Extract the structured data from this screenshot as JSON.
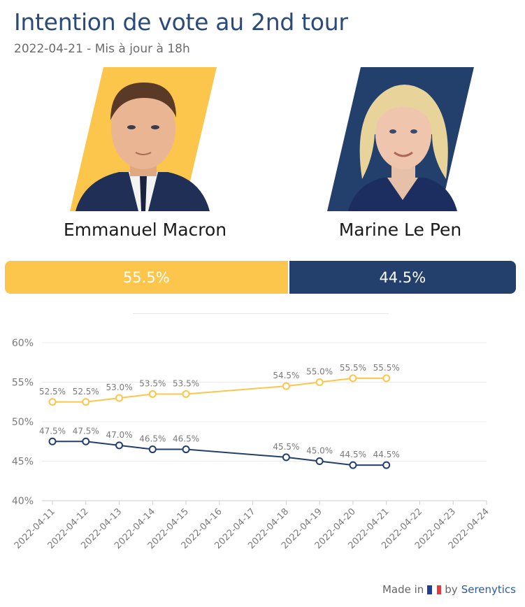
{
  "header": {
    "title": "Intention de vote au 2nd tour",
    "subtitle": "2022-04-21 - Mis à jour à 18h"
  },
  "candidates": [
    {
      "name": "Emmanuel Macron",
      "share": 55.5,
      "share_label": "55.5%",
      "color": "#fcc64c"
    },
    {
      "name": "Marine Le Pen",
      "share": 44.5,
      "share_label": "44.5%",
      "color": "#233f6c"
    }
  ],
  "footer": {
    "made_in": "Made in",
    "by": "by",
    "brand": "Serenytics",
    "flag_colors": [
      "#1d3f9a",
      "#ffffff",
      "#e63b3b"
    ]
  },
  "chart_data": {
    "type": "line",
    "x": [
      "2022-04-11",
      "2022-04-12",
      "2022-04-13",
      "2022-04-14",
      "2022-04-15",
      "2022-04-16",
      "2022-04-17",
      "2022-04-18",
      "2022-04-19",
      "2022-04-20",
      "2022-04-21",
      "2022-04-22",
      "2022-04-23",
      "2022-04-24"
    ],
    "series": [
      {
        "color": "#fcc64c",
        "values": [
          52.5,
          52.5,
          53.0,
          53.5,
          53.5,
          null,
          null,
          54.5,
          55.0,
          55.5,
          55.5,
          null,
          null,
          null
        ]
      },
      {
        "color": "#233f6c",
        "values": [
          47.5,
          47.5,
          47.0,
          46.5,
          46.5,
          null,
          null,
          45.5,
          45.0,
          44.5,
          44.5,
          null,
          null,
          null
        ]
      }
    ],
    "ylim": [
      40,
      60
    ],
    "yticks": [
      "40%",
      "45%",
      "50%",
      "55%",
      "60%"
    ],
    "grid": true,
    "data_labels": true
  }
}
